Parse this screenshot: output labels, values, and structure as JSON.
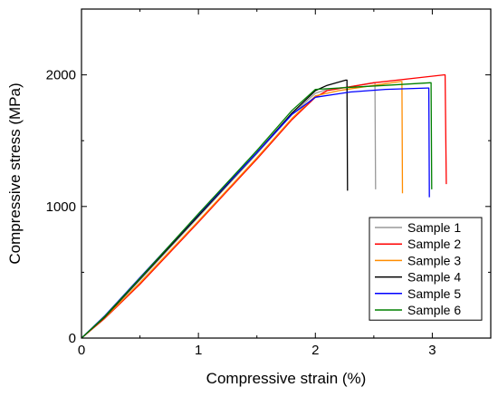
{
  "chart_data": {
    "type": "line",
    "title": "",
    "xlabel": "Compressive strain (%)",
    "ylabel": "Compressive stress (MPa)",
    "xlim": [
      0,
      3.5
    ],
    "ylim": [
      0,
      2500
    ],
    "x_ticks": [
      0,
      1,
      2,
      3
    ],
    "x_tick_labels": [
      "0",
      "1",
      "2",
      "3"
    ],
    "y_ticks": [
      0,
      1000,
      2000
    ],
    "y_tick_labels": [
      "0",
      "1000",
      "2000"
    ],
    "grid": false,
    "legend_position": "bottom-right",
    "series": [
      {
        "name": "Sample 1",
        "color": "#999999",
        "x": [
          0,
          0.2,
          0.5,
          1.0,
          1.5,
          1.8,
          2.0,
          2.1,
          2.3,
          2.5,
          2.51,
          2.515
        ],
        "y": [
          0,
          160,
          440,
          920,
          1400,
          1700,
          1860,
          1890,
          1910,
          1940,
          1940,
          1130
        ]
      },
      {
        "name": "Sample 2",
        "color": "#ff0000",
        "x": [
          0,
          0.2,
          0.5,
          1.0,
          1.5,
          1.8,
          2.0,
          2.1,
          2.5,
          2.9,
          3.1,
          3.11,
          3.12
        ],
        "y": [
          0,
          150,
          410,
          880,
          1360,
          1660,
          1830,
          1880,
          1940,
          1980,
          2000,
          2000,
          1170
        ]
      },
      {
        "name": "Sample 3",
        "color": "#ff8c00",
        "x": [
          0,
          0.2,
          0.5,
          1.0,
          1.5,
          1.8,
          2.0,
          2.2,
          2.5,
          2.73,
          2.74,
          2.745
        ],
        "y": [
          0,
          155,
          420,
          890,
          1370,
          1670,
          1840,
          1880,
          1920,
          1950,
          1950,
          1100
        ]
      },
      {
        "name": "Sample 4",
        "color": "#000000",
        "x": [
          0,
          0.2,
          0.5,
          1.0,
          1.5,
          1.8,
          2.0,
          2.1,
          2.26,
          2.27,
          2.275
        ],
        "y": [
          0,
          160,
          450,
          930,
          1410,
          1710,
          1880,
          1920,
          1960,
          1960,
          1120
        ]
      },
      {
        "name": "Sample 5",
        "color": "#0000ff",
        "x": [
          0,
          0.2,
          0.5,
          1.0,
          1.5,
          1.8,
          2.0,
          2.3,
          2.6,
          2.96,
          2.97,
          2.975
        ],
        "y": [
          0,
          170,
          460,
          940,
          1410,
          1700,
          1830,
          1870,
          1890,
          1900,
          1900,
          1070
        ]
      },
      {
        "name": "Sample 6",
        "color": "#008000",
        "x": [
          0,
          0.2,
          0.5,
          1.0,
          1.5,
          1.8,
          2.0,
          2.2,
          2.6,
          2.98,
          2.99,
          2.995
        ],
        "y": [
          0,
          165,
          455,
          945,
          1425,
          1730,
          1890,
          1900,
          1920,
          1940,
          1940,
          1130
        ]
      }
    ]
  }
}
